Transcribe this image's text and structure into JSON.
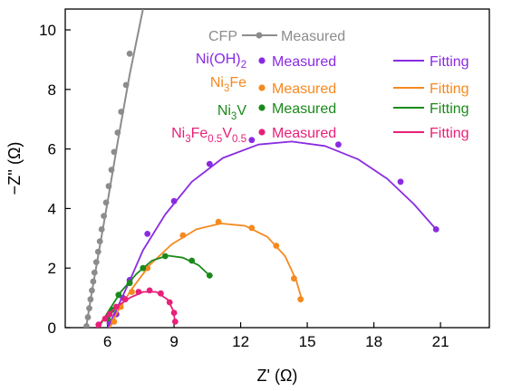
{
  "chart_data": {
    "type": "scatter",
    "title": "",
    "xlabel": "Z' (Ω)",
    "ylabel": "−Z'' (Ω)",
    "xlim": [
      4.1,
      23.2
    ],
    "ylim": [
      0,
      10.7
    ],
    "xticks": [
      6,
      9,
      12,
      15,
      18,
      21
    ],
    "yticks": [
      0,
      2,
      4,
      6,
      8,
      10
    ],
    "grid": false,
    "legend": "top, in-plot",
    "series": [
      {
        "name": "CFP",
        "label_text": "CFP",
        "marker_label": "Measured",
        "fit_label": "",
        "color": "#8c8c8c",
        "measured": [
          [
            5.06,
            0.05
          ],
          [
            5.12,
            0.35
          ],
          [
            5.18,
            0.65
          ],
          [
            5.24,
            0.95
          ],
          [
            5.3,
            1.25
          ],
          [
            5.36,
            1.55
          ],
          [
            5.42,
            1.85
          ],
          [
            5.5,
            2.2
          ],
          [
            5.58,
            2.55
          ],
          [
            5.66,
            2.9
          ],
          [
            5.74,
            3.3
          ],
          [
            5.84,
            3.75
          ],
          [
            5.94,
            4.2
          ],
          [
            6.06,
            4.75
          ],
          [
            6.18,
            5.3
          ],
          [
            6.3,
            5.9
          ],
          [
            6.46,
            6.55
          ],
          [
            6.62,
            7.25
          ],
          [
            6.84,
            8.15
          ],
          [
            7.0,
            9.2
          ]
        ],
        "fit": [
          [
            5.04,
            0
          ],
          [
            5.3,
            1.2
          ],
          [
            5.6,
            2.5
          ],
          [
            6.0,
            4.2
          ],
          [
            6.5,
            6.4
          ],
          [
            7.0,
            8.5
          ],
          [
            7.6,
            10.7
          ]
        ]
      },
      {
        "name": "Ni(OH)2",
        "label_text": "Ni(OH)",
        "label_sub": "2",
        "marker_label": "Measured",
        "fit_label": "Fitting",
        "color": "#8a2be2",
        "measured": [
          [
            6.1,
            0.15
          ],
          [
            6.4,
            0.45
          ],
          [
            6.7,
            1.0
          ],
          [
            7.0,
            1.6
          ],
          [
            7.8,
            3.15
          ],
          [
            9.0,
            4.25
          ],
          [
            10.6,
            5.5
          ],
          [
            12.5,
            6.3
          ],
          [
            16.4,
            6.15
          ],
          [
            19.2,
            4.9
          ],
          [
            20.8,
            3.3
          ]
        ],
        "fit": [
          [
            6.0,
            0
          ],
          [
            6.4,
            0.6
          ],
          [
            6.9,
            1.4
          ],
          [
            7.6,
            2.6
          ],
          [
            8.6,
            3.8
          ],
          [
            9.8,
            4.9
          ],
          [
            11.2,
            5.7
          ],
          [
            12.8,
            6.15
          ],
          [
            14.3,
            6.25
          ],
          [
            15.8,
            6.1
          ],
          [
            17.3,
            5.65
          ],
          [
            18.6,
            5.0
          ],
          [
            19.8,
            4.15
          ],
          [
            20.8,
            3.3
          ]
        ]
      },
      {
        "name": "Ni3Fe",
        "label_text": "Ni",
        "label_sub": "3",
        "label_rest": "Fe",
        "marker_label": "Measured",
        "fit_label": "Fitting",
        "color": "#f5891f",
        "measured": [
          [
            6.3,
            0.2
          ],
          [
            6.6,
            0.7
          ],
          [
            7.1,
            1.2
          ],
          [
            7.8,
            2.0
          ],
          [
            9.4,
            3.1
          ],
          [
            11.0,
            3.55
          ],
          [
            12.5,
            3.35
          ],
          [
            13.6,
            2.75
          ],
          [
            14.4,
            1.65
          ],
          [
            14.7,
            0.95
          ]
        ],
        "fit": [
          [
            6.1,
            0
          ],
          [
            6.5,
            0.6
          ],
          [
            7.1,
            1.3
          ],
          [
            7.9,
            2.1
          ],
          [
            8.9,
            2.8
          ],
          [
            10.0,
            3.3
          ],
          [
            11.1,
            3.5
          ],
          [
            12.2,
            3.42
          ],
          [
            13.2,
            3.05
          ],
          [
            14.0,
            2.4
          ],
          [
            14.5,
            1.6
          ],
          [
            14.75,
            0.95
          ]
        ]
      },
      {
        "name": "Ni3V",
        "label_text": "Ni",
        "label_sub": "3",
        "label_rest": "V",
        "marker_label": "Measured",
        "fit_label": "Fitting",
        "color": "#1a8a1a",
        "measured": [
          [
            6.0,
            0.3
          ],
          [
            6.2,
            0.6
          ],
          [
            6.5,
            1.1
          ],
          [
            7.0,
            1.5
          ],
          [
            7.6,
            2.0
          ],
          [
            8.6,
            2.4
          ],
          [
            9.8,
            2.25
          ],
          [
            10.6,
            1.75
          ]
        ],
        "fit": [
          [
            5.6,
            0
          ],
          [
            6.0,
            0.5
          ],
          [
            6.6,
            1.2
          ],
          [
            7.3,
            1.8
          ],
          [
            8.0,
            2.25
          ],
          [
            8.7,
            2.42
          ],
          [
            9.4,
            2.35
          ],
          [
            10.1,
            2.1
          ],
          [
            10.6,
            1.75
          ]
        ]
      },
      {
        "name": "Ni3Fe0.5V0.5",
        "label_text": "Ni",
        "label_sub": "3",
        "label_rest": "Fe",
        "label_sub2": "0.5",
        "label_rest2": "V",
        "label_sub3": "0.5",
        "marker_label": "Measured",
        "fit_label": "Fitting",
        "color": "#e8207a",
        "measured": [
          [
            5.6,
            0.1
          ],
          [
            5.9,
            0.3
          ],
          [
            6.1,
            0.45
          ],
          [
            6.4,
            0.7
          ],
          [
            6.8,
            0.95
          ],
          [
            7.4,
            1.2
          ],
          [
            7.9,
            1.25
          ],
          [
            8.4,
            1.15
          ],
          [
            8.8,
            0.85
          ],
          [
            9.0,
            0.5
          ],
          [
            9.05,
            0.2
          ]
        ],
        "fit": [
          [
            5.5,
            0
          ],
          [
            5.9,
            0.35
          ],
          [
            6.4,
            0.7
          ],
          [
            7.0,
            1.0
          ],
          [
            7.6,
            1.2
          ],
          [
            8.2,
            1.2
          ],
          [
            8.7,
            0.95
          ],
          [
            8.95,
            0.6
          ],
          [
            9.05,
            0.2
          ]
        ]
      }
    ]
  }
}
